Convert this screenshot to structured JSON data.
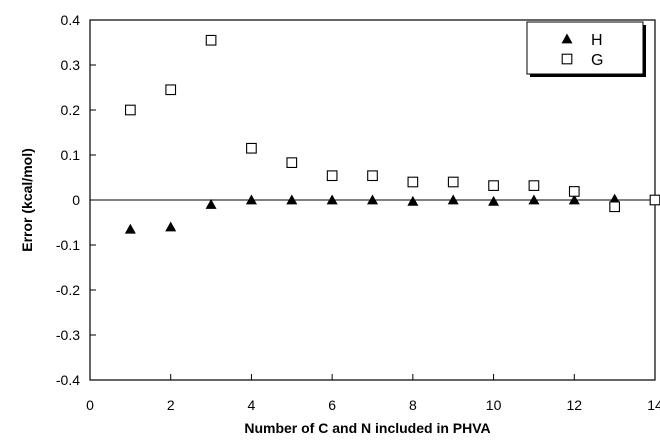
{
  "chart_data": {
    "type": "scatter",
    "title": "",
    "xlabel": "Number of C and N included in PHVA",
    "ylabel": "Error (kcal/mol)",
    "xlim": [
      0,
      14
    ],
    "ylim": [
      -0.4,
      0.4
    ],
    "x_ticks": [
      "0",
      "2",
      "4",
      "6",
      "8",
      "10",
      "12",
      "14"
    ],
    "y_ticks": [
      "-0.4",
      "-0.3",
      "-0.2",
      "-0.1",
      "0",
      "0.1",
      "0.2",
      "0.3",
      "0.4"
    ],
    "grid": false,
    "zero_line": true,
    "legend_position": "top-right",
    "series": [
      {
        "name": "H",
        "marker": "filled-triangle",
        "color": "#000000",
        "x": [
          1,
          2,
          3,
          4,
          5,
          6,
          7,
          8,
          9,
          10,
          11,
          12,
          13,
          14
        ],
        "y": [
          -0.065,
          -0.06,
          -0.01,
          0.0,
          0.0,
          0.0,
          0.0,
          -0.003,
          0.0,
          -0.003,
          0.0,
          0.0,
          0.002,
          0.0
        ]
      },
      {
        "name": "G",
        "marker": "open-square",
        "color": "#000000",
        "x": [
          1,
          2,
          3,
          4,
          5,
          6,
          7,
          8,
          9,
          10,
          11,
          12,
          13,
          14
        ],
        "y": [
          0.2,
          0.245,
          0.355,
          0.115,
          0.083,
          0.054,
          0.054,
          0.04,
          0.04,
          0.032,
          0.032,
          0.019,
          -0.015,
          0.0
        ]
      }
    ]
  }
}
